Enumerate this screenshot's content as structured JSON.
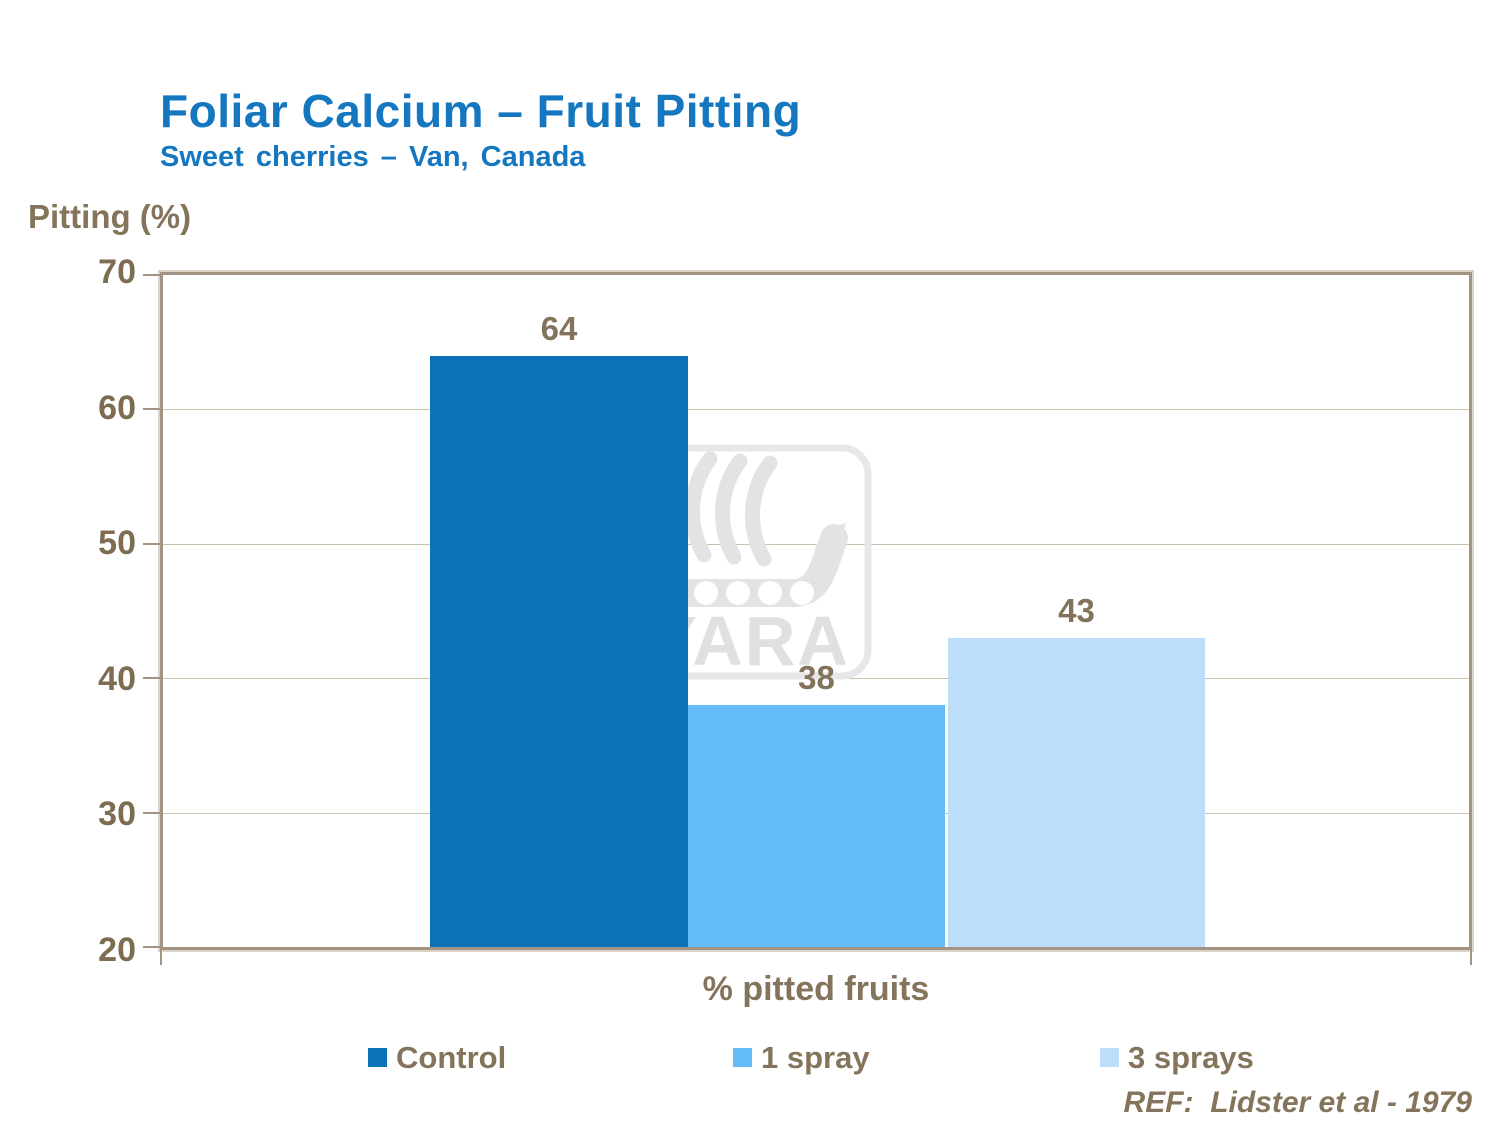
{
  "slide": {
    "title": "Foliar Calcium – Fruit Pitting",
    "subtitle": "Sweet cherries – Van, Canada",
    "reference": "REF:  Lidster et al - 1979"
  },
  "chart": {
    "y_axis_title": "Pitting (%)",
    "x_axis_label": "% pitted fruits"
  },
  "watermark": {
    "name": "yara-logo",
    "text": "YARA"
  },
  "chart_data": {
    "type": "bar",
    "title": "Foliar Calcium – Fruit Pitting",
    "subtitle": "Sweet cherries – Van, Canada",
    "ylabel": "Pitting (%)",
    "xlabel": "% pitted fruits",
    "ylim": [
      20,
      70
    ],
    "yticks": [
      20,
      30,
      40,
      50,
      60,
      70
    ],
    "grid": true,
    "legend_position": "bottom",
    "categories": [
      "Control",
      "1 spray",
      "3 sprays"
    ],
    "values": [
      64,
      38,
      43
    ],
    "series": [
      {
        "name": "Control",
        "value": 64,
        "color": "#0B71B8"
      },
      {
        "name": "1 spray",
        "value": 38,
        "color": "#63BBF8"
      },
      {
        "name": "3 sprays",
        "value": 43,
        "color": "#BCDEFB"
      }
    ],
    "annotation": "REF:  Lidster et al - 1979"
  },
  "colors": {
    "title_blue": "#1577C0",
    "text_brown": "#85745C",
    "frame": "#A39382",
    "gridline": "#CBC0B0",
    "watermark_gray": "#E4E4E4"
  }
}
